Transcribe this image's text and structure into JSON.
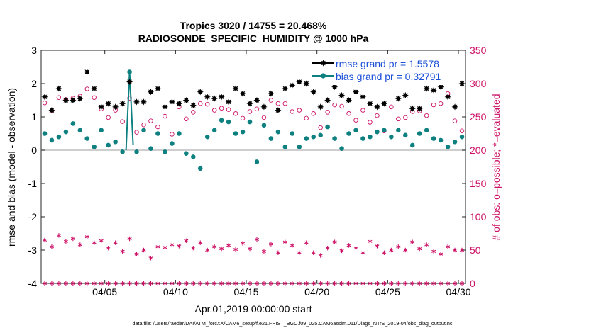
{
  "chart_data": {
    "type": "line",
    "title_line1": "Tropics 3020 / 14755 = 20.468%",
    "title_line2": "RADIOSONDE_SPECIFIC_HUMIDITY @ 1000 hPa",
    "xlabel": "Apr.01,2019 00:00:00 start",
    "ylabel_left": "rmse and bias (model - observation)",
    "ylabel_right": "# of obs: o=possible; *=evaluated",
    "footer": "data file: /Users/raeder/DAI/ATM_forcXX/CAM6_setup/f.e21.FHIST_BGC.f09_025.CAM6assim.011/Diags_NTrS_2019-04/obs_diag_output.nc",
    "xlim": [
      0.5,
      30.5
    ],
    "ylim_left": [
      -4,
      3
    ],
    "ylim_right": [
      0,
      350
    ],
    "x_ticks": [
      {
        "x": 5,
        "label": "04/05"
      },
      {
        "x": 10,
        "label": "04/10"
      },
      {
        "x": 15,
        "label": "04/15"
      },
      {
        "x": 20,
        "label": "04/20"
      },
      {
        "x": 25,
        "label": "04/25"
      },
      {
        "x": 30,
        "label": "04/30"
      }
    ],
    "y_ticks_left": [
      "3",
      "2",
      "1",
      "0",
      "-1",
      "-2",
      "-3",
      "-4"
    ],
    "y_ticks_right": [
      "350",
      "300",
      "250",
      "200",
      "150",
      "100",
      "50",
      "0"
    ],
    "y_ticks_left_values": [
      3,
      2,
      1,
      0,
      -1,
      -2,
      -3,
      -4
    ],
    "y_ticks_right_values": [
      350,
      300,
      250,
      200,
      150,
      100,
      50,
      0
    ],
    "colors": {
      "rmse": "#000000",
      "bias": "#0e8080",
      "obs": "#cc1166",
      "legend_text": "#1a4fd6",
      "zero_line": "#bdbdbd",
      "axis": "#262626"
    },
    "legend": [
      {
        "name": "rmse",
        "label": "rmse grand pr = 1.5578"
      },
      {
        "name": "bias",
        "label": "bias grand pr = 0.32791"
      }
    ],
    "bias_connected_x": [
      6.5,
      6.75,
      7.0
    ],
    "bias_connected_y": [
      0.0,
      2.35,
      0.15
    ],
    "series": [
      {
        "name": "rmse",
        "x": [
          0.75,
          1.25,
          1.75,
          2.25,
          2.75,
          3.25,
          3.75,
          4.25,
          4.75,
          5.25,
          5.75,
          6.25,
          6.75,
          7.25,
          7.75,
          8.25,
          8.75,
          9.25,
          9.75,
          10.25,
          10.75,
          11.25,
          11.75,
          12.25,
          12.75,
          13.25,
          13.75,
          14.25,
          14.75,
          15.25,
          15.75,
          16.25,
          16.75,
          17.25,
          17.75,
          18.25,
          18.75,
          19.25,
          19.75,
          20.25,
          20.75,
          21.25,
          21.75,
          22.25,
          22.75,
          23.25,
          23.75,
          24.25,
          24.75,
          25.25,
          25.75,
          26.25,
          26.75,
          27.25,
          27.75,
          28.25,
          28.75,
          29.25,
          29.75,
          30.25
        ],
        "values": [
          1.6,
          1.2,
          1.85,
          1.5,
          1.5,
          1.55,
          2.35,
          1.85,
          1.3,
          1.4,
          1.3,
          1.4,
          2.05,
          1.45,
          1.45,
          1.75,
          1.85,
          1.3,
          1.45,
          1.4,
          1.5,
          1.35,
          1.75,
          1.6,
          1.55,
          1.6,
          1.45,
          1.85,
          1.7,
          1.4,
          1.5,
          1.3,
          1.7,
          1.2,
          1.85,
          1.95,
          2.05,
          2.0,
          1.75,
          1.3,
          1.5,
          1.9,
          1.65,
          1.5,
          1.75,
          1.6,
          1.4,
          1.3,
          1.4,
          2.05,
          1.55,
          1.65,
          1.25,
          1.25,
          1.85,
          1.8,
          1.9,
          1.6,
          1.3,
          2.0
        ]
      },
      {
        "name": "bias",
        "x": [
          0.75,
          1.25,
          1.75,
          2.25,
          2.75,
          3.25,
          3.75,
          4.25,
          4.75,
          5.25,
          5.75,
          6.25,
          6.75,
          7.25,
          7.75,
          8.25,
          8.75,
          9.25,
          9.75,
          10.25,
          10.75,
          11.25,
          11.75,
          12.25,
          12.75,
          13.25,
          13.75,
          14.25,
          14.75,
          15.25,
          15.75,
          16.25,
          16.75,
          17.25,
          17.75,
          18.25,
          18.75,
          19.25,
          19.75,
          20.25,
          20.75,
          21.25,
          21.75,
          22.25,
          22.75,
          23.25,
          23.75,
          24.25,
          24.75,
          25.25,
          25.75,
          26.25,
          26.75,
          27.25,
          27.75,
          28.25,
          28.75,
          29.25,
          29.75,
          30.25
        ],
        "values": [
          0.5,
          0.3,
          0.4,
          0.55,
          0.8,
          0.6,
          0.35,
          0.1,
          0.6,
          0.15,
          0.25,
          -0.05,
          2.35,
          -0.05,
          0.6,
          0.05,
          0.5,
          -0.05,
          0.2,
          0.5,
          -0.1,
          -0.2,
          -0.55,
          0.4,
          0.6,
          0.9,
          0.85,
          0.5,
          0.55,
          0.85,
          -0.35,
          0.75,
          0.35,
          0.55,
          0.1,
          0.5,
          0.1,
          0.35,
          0.4,
          0.45,
          0.7,
          0.35,
          0.05,
          0.5,
          0.6,
          0.35,
          0.4,
          0.55,
          0.6,
          0.4,
          0.6,
          0.45,
          0.15,
          0.5,
          0.6,
          0.35,
          0.3,
          0.1,
          0.25,
          0.4
        ]
      },
      {
        "name": "possible",
        "x": [
          0.75,
          1.25,
          1.75,
          2.25,
          2.75,
          3.25,
          3.75,
          4.25,
          4.75,
          5.25,
          5.75,
          6.25,
          6.75,
          7.25,
          7.75,
          8.25,
          8.75,
          9.25,
          9.75,
          10.25,
          10.75,
          11.25,
          11.75,
          12.25,
          12.75,
          13.25,
          13.75,
          14.25,
          14.75,
          15.25,
          15.75,
          16.25,
          16.75,
          17.25,
          17.75,
          18.25,
          18.75,
          19.25,
          19.75,
          20.25,
          20.75,
          21.25,
          21.75,
          22.25,
          22.75,
          23.25,
          23.75,
          24.25,
          24.75,
          25.25,
          25.75,
          26.25,
          26.75,
          27.25,
          27.75,
          28.25,
          28.75,
          29.25,
          29.75,
          30.25
        ],
        "values": [
          271,
          259,
          279,
          276,
          278,
          281,
          292,
          279,
          262,
          249,
          260,
          243,
          278,
          227,
          238,
          244,
          235,
          251,
          224,
          265,
          247,
          257,
          270,
          269,
          260,
          263,
          261,
          255,
          248,
          258,
          262,
          249,
          275,
          270,
          270,
          258,
          260,
          248,
          255,
          234,
          257,
          268,
          266,
          255,
          245,
          260,
          242,
          252,
          229,
          265,
          247,
          249,
          258,
          259,
          252,
          268,
          270,
          285,
          244,
          229
        ]
      },
      {
        "name": "evaluated",
        "x": [
          0.75,
          1.25,
          1.75,
          2.25,
          2.75,
          3.25,
          3.75,
          4.25,
          4.75,
          5.25,
          5.75,
          6.25,
          6.75,
          7.25,
          7.75,
          8.25,
          8.75,
          9.25,
          9.75,
          10.25,
          10.75,
          11.25,
          11.75,
          12.25,
          12.75,
          13.25,
          13.75,
          14.25,
          14.75,
          15.25,
          15.75,
          16.25,
          16.75,
          17.25,
          17.75,
          18.25,
          18.75,
          19.25,
          19.75,
          20.25,
          20.75,
          21.25,
          21.75,
          22.25,
          22.75,
          23.25,
          23.75,
          24.25,
          24.75,
          25.25,
          25.75,
          26.25,
          26.75,
          27.25,
          27.75,
          28.25,
          28.75,
          29.25,
          29.75,
          30.25
        ],
        "values": [
          65,
          55,
          72,
          63,
          67,
          58,
          70,
          61,
          64,
          53,
          61,
          48,
          67,
          44,
          50,
          38,
          55,
          54,
          58,
          56,
          64,
          53,
          61,
          50,
          55,
          52,
          57,
          51,
          60,
          52,
          66,
          48,
          59,
          46,
          62,
          57,
          46,
          61,
          46,
          42,
          53,
          62,
          49,
          57,
          53,
          46,
          63,
          56,
          46,
          50,
          55,
          50,
          62,
          52,
          58,
          48,
          44,
          55,
          50,
          50
        ]
      },
      {
        "name": "zero_row_stars",
        "x": [
          0.75,
          1.25,
          1.75,
          2.25,
          2.75,
          3.25,
          3.75,
          4.25,
          4.75,
          5.25,
          5.75,
          6.25,
          6.75,
          7.25,
          7.75,
          8.25,
          8.75,
          9.25,
          9.75,
          10.25,
          10.75,
          11.25,
          11.75,
          12.25,
          12.75,
          13.25,
          13.75,
          14.25,
          14.75,
          15.25,
          15.75,
          16.25,
          16.75,
          17.25,
          17.75,
          18.25,
          18.75,
          19.25,
          19.75,
          20.25,
          20.75,
          21.25,
          21.75,
          22.25,
          22.75,
          23.25,
          23.75,
          24.25,
          24.75,
          25.25,
          25.75,
          26.25,
          26.75,
          27.25,
          27.75,
          28.25,
          28.75,
          29.25,
          29.75,
          30.25
        ],
        "values": [
          0,
          0,
          0,
          0,
          0,
          0,
          0,
          0,
          0,
          0,
          0,
          0,
          0,
          0,
          0,
          0,
          0,
          0,
          0,
          0,
          0,
          0,
          0,
          0,
          0,
          0,
          0,
          0,
          0,
          0,
          0,
          0,
          0,
          0,
          0,
          0,
          0,
          0,
          0,
          0,
          0,
          0,
          0,
          0,
          0,
          0,
          0,
          0,
          0,
          0,
          0,
          0,
          0,
          0,
          0,
          0,
          0,
          0,
          0,
          0
        ]
      }
    ]
  }
}
